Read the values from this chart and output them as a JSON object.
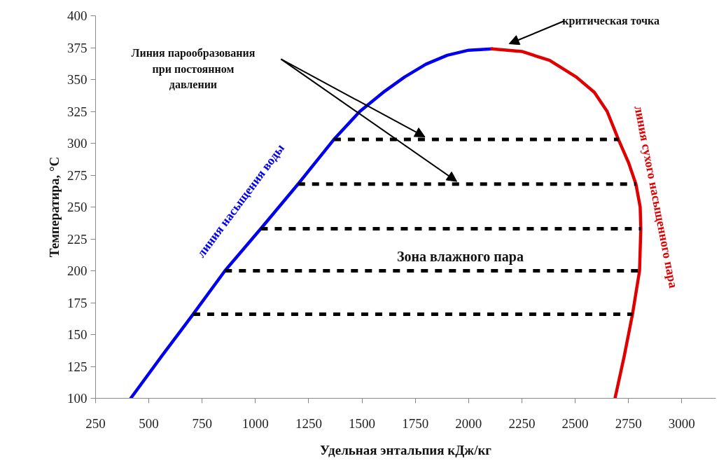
{
  "chart_data": {
    "type": "line",
    "xlabel": "Удельная энтальпия кДж/кг",
    "ylabel": "Температира, °С",
    "xlim": [
      250,
      3160
    ],
    "xticks": [
      250,
      500,
      750,
      1000,
      1250,
      1500,
      1750,
      2000,
      2250,
      2500,
      2750,
      3000
    ],
    "ylim": [
      100,
      400
    ],
    "yticks": [
      100,
      125,
      150,
      175,
      200,
      225,
      250,
      275,
      300,
      325,
      350,
      375,
      400
    ],
    "grid": false,
    "line_style": "solid",
    "marker": "none",
    "series": [
      {
        "name": "линия насыщения воды",
        "color": "#0000ee",
        "x": [
          415,
          560,
          708,
          857,
          1025,
          1200,
          1368,
          1490,
          1600,
          1700,
          1800,
          1900,
          2000,
          2110
        ],
        "values": [
          100,
          133,
          166,
          200,
          233,
          268,
          303,
          325,
          340,
          352,
          362,
          369,
          373,
          374
        ]
      },
      {
        "name": "линия сухого насыщенного пара",
        "color": "#e00000",
        "x": [
          2110,
          2250,
          2380,
          2505,
          2590,
          2650,
          2703,
          2750,
          2785,
          2805,
          2808,
          2802,
          2769,
          2730,
          2687
        ],
        "values": [
          374,
          372,
          365,
          352,
          340,
          325,
          303,
          285,
          268,
          250,
          233,
          200,
          166,
          133,
          100
        ]
      },
      {
        "color": "#000000",
        "line_style": "dashed",
        "x": [
          1368,
          2703
        ],
        "values": [
          303,
          303
        ]
      },
      {
        "color": "#000000",
        "line_style": "dashed",
        "x": [
          1200,
          2785
        ],
        "values": [
          268,
          268
        ]
      },
      {
        "color": "#000000",
        "line_style": "dashed",
        "x": [
          1025,
          2808
        ],
        "values": [
          233,
          233
        ]
      },
      {
        "color": "#000000",
        "line_style": "dashed",
        "x": [
          857,
          2802
        ],
        "values": [
          200,
          200
        ]
      },
      {
        "color": "#000000",
        "line_style": "dashed",
        "x": [
          708,
          2769
        ],
        "values": [
          166,
          166
        ]
      }
    ],
    "annotations": [
      "Линия парообразования\nпри постоянном\nдавлении",
      "критическая  точка",
      "Зона влажного пара"
    ]
  }
}
